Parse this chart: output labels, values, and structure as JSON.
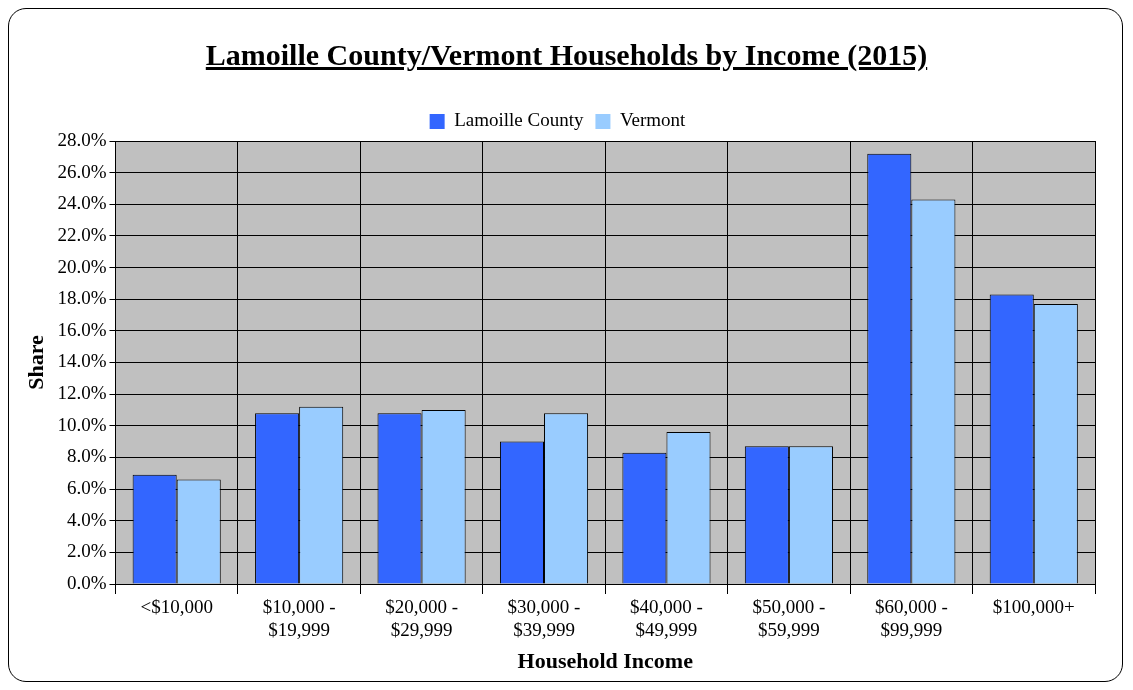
{
  "chart_data": {
    "type": "bar",
    "title": "Lamoille County/Vermont Households by Income (2015)",
    "xlabel": "Household Income",
    "ylabel": "Share",
    "categories": [
      "<$10,000",
      "$10,000 - $19,999",
      "$20,000 - $29,999",
      "$30,000 - $39,999",
      "$40,000 - $49,999",
      "$50,000 - $59,999",
      "$60,000 - $99,999",
      "$100,000+"
    ],
    "series": [
      {
        "name": "Lamoille County",
        "color": "#3366ff",
        "values": [
          6.9,
          10.8,
          10.8,
          9.0,
          8.3,
          8.7,
          27.2,
          18.3
        ]
      },
      {
        "name": "Vermont",
        "color": "#99ccff",
        "values": [
          6.6,
          11.2,
          11.0,
          10.8,
          9.6,
          8.7,
          24.3,
          17.7
        ]
      }
    ],
    "ylim": [
      0,
      28
    ],
    "yticks": [
      {
        "value": 0,
        "label": "0.0%"
      },
      {
        "value": 2,
        "label": "2.0%"
      },
      {
        "value": 4,
        "label": "4.0%"
      },
      {
        "value": 6,
        "label": "6.0%"
      },
      {
        "value": 8,
        "label": "8.0%"
      },
      {
        "value": 10,
        "label": "10.0%"
      },
      {
        "value": 12,
        "label": "12.0%"
      },
      {
        "value": 14,
        "label": "14.0%"
      },
      {
        "value": 16,
        "label": "16.0%"
      },
      {
        "value": 18,
        "label": "18.0%"
      },
      {
        "value": 20,
        "label": "20.0%"
      },
      {
        "value": 22,
        "label": "22.0%"
      },
      {
        "value": 24,
        "label": "24.0%"
      },
      {
        "value": 26,
        "label": "26.0%"
      },
      {
        "value": 28,
        "label": "28.0%"
      }
    ],
    "grid": true,
    "legend": "top"
  }
}
